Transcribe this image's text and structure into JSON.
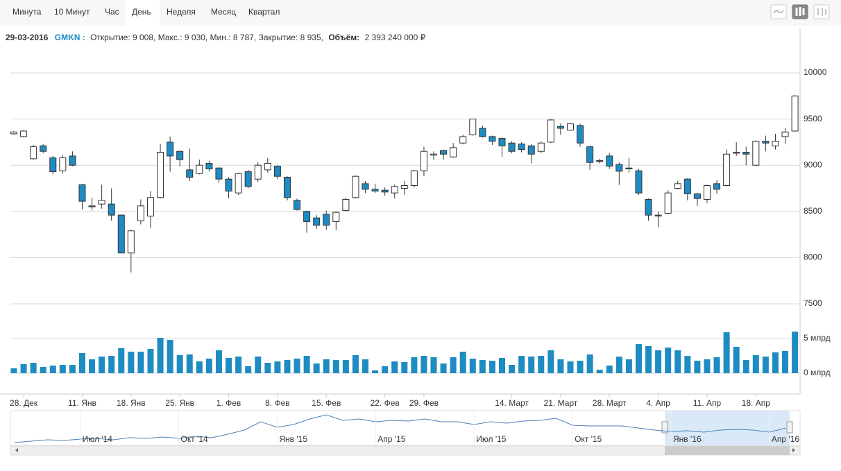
{
  "tabs": [
    "Минута",
    "10 Минут",
    "Час",
    "День",
    "Неделя",
    "Месяц",
    "Квартал"
  ],
  "active_tab": 3,
  "info": {
    "date": "29-03-2016",
    "symbol": "GMKN :",
    "ohlc_text": "Открытие: 9 008, Макс.: 9 030, Мин.: 8 787, Закрытие: 8 935,",
    "volume_label": "Объём:",
    "volume_value": "2 393 240 000 ₽"
  },
  "chart_data": {
    "type": "candlestick",
    "categories": [
      null,
      "28. Дек",
      null,
      null,
      null,
      null,
      null,
      "11. Янв",
      null,
      null,
      null,
      null,
      "18. Янв",
      null,
      null,
      null,
      null,
      "25. Янв",
      null,
      null,
      null,
      null,
      "1. Фев",
      null,
      null,
      null,
      null,
      "8. Фев",
      null,
      null,
      null,
      null,
      "15. Фев",
      null,
      null,
      null,
      null,
      null,
      "22. Фев",
      null,
      null,
      null,
      "29. Фев",
      null,
      null,
      null,
      null,
      null,
      null,
      null,
      null,
      "14. Март",
      null,
      null,
      null,
      null,
      "21. Март",
      null,
      null,
      null,
      null,
      "28. Март",
      null,
      null,
      null,
      null,
      "4. Апр",
      null,
      null,
      null,
      null,
      "11. Апр",
      null,
      null,
      null,
      null,
      "18. Апр",
      null,
      null,
      null,
      null
    ],
    "open": [
      9340,
      9310,
      9070,
      9210,
      9080,
      8940,
      9100,
      8790,
      8560,
      8580,
      8580,
      8460,
      8050,
      8400,
      8450,
      8650,
      9250,
      9150,
      8950,
      8910,
      9020,
      8970,
      8850,
      8700,
      8930,
      8850,
      8950,
      8990,
      8870,
      8620,
      8500,
      8430,
      8470,
      8390,
      8510,
      8650,
      8800,
      8740,
      8730,
      8700,
      8750,
      8780,
      8940,
      9110,
      9160,
      9090,
      9240,
      9330,
      9400,
      9310,
      9290,
      9240,
      9230,
      9210,
      9150,
      9250,
      9420,
      9380,
      9430,
      9200,
      9050,
      9100,
      9008,
      8970,
      8940,
      8630,
      8460,
      8480,
      8750,
      8850,
      8690,
      8630,
      8800,
      8780,
      9130,
      9140,
      9000,
      9260,
      9210,
      9310,
      9370
    ],
    "high": [
      9370,
      9380,
      9220,
      9230,
      9100,
      9110,
      9150,
      8800,
      8650,
      8790,
      8750,
      8470,
      8300,
      8630,
      8720,
      9230,
      9310,
      9160,
      9180,
      9060,
      9050,
      8980,
      8870,
      8920,
      8950,
      9030,
      9080,
      9000,
      8880,
      8640,
      8510,
      8460,
      8510,
      8500,
      8650,
      8890,
      8830,
      8800,
      8760,
      8790,
      8830,
      8950,
      9200,
      9150,
      9170,
      9240,
      9330,
      9500,
      9430,
      9320,
      9300,
      9260,
      9250,
      9230,
      9260,
      9500,
      9450,
      9460,
      9450,
      9210,
      9070,
      9130,
      9030,
      9080,
      8960,
      8640,
      8500,
      8730,
      8830,
      8860,
      8700,
      8790,
      8840,
      9170,
      9250,
      9200,
      9270,
      9320,
      9340,
      9400,
      9760
    ],
    "low": [
      9330,
      9300,
      9060,
      9130,
      8900,
      8910,
      8990,
      8520,
      8510,
      8530,
      8400,
      8050,
      7840,
      8360,
      8320,
      8640,
      8930,
      8990,
      8830,
      8900,
      8930,
      8810,
      8640,
      8680,
      8750,
      8820,
      8920,
      8850,
      8620,
      8510,
      8270,
      8310,
      8300,
      8300,
      8500,
      8640,
      8700,
      8700,
      8670,
      8640,
      8680,
      8760,
      8880,
      9060,
      9060,
      9080,
      9230,
      9320,
      9300,
      9220,
      9090,
      9130,
      9140,
      9020,
      9130,
      9240,
      9330,
      9370,
      9200,
      8950,
      9020,
      8960,
      8787,
      8920,
      8680,
      8400,
      8330,
      8470,
      8740,
      8620,
      8560,
      8590,
      8690,
      8770,
      9100,
      9000,
      8990,
      9150,
      9170,
      9230,
      9360
    ],
    "close": [
      9360,
      9370,
      9200,
      9150,
      8930,
      9080,
      9000,
      8610,
      8550,
      8620,
      8460,
      8050,
      8290,
      8560,
      8650,
      9140,
      9100,
      9060,
      8870,
      9000,
      8960,
      8850,
      8720,
      8910,
      8770,
      9000,
      9020,
      8880,
      8650,
      8520,
      8390,
      8350,
      8350,
      8490,
      8630,
      8880,
      8740,
      8720,
      8710,
      8770,
      8780,
      8940,
      9150,
      9120,
      9120,
      9190,
      9310,
      9500,
      9310,
      9260,
      9210,
      9150,
      9170,
      9120,
      9240,
      9490,
      9400,
      9450,
      9240,
      9030,
      9040,
      8990,
      8935,
      8960,
      8700,
      8460,
      8450,
      8700,
      8800,
      8690,
      8640,
      8780,
      8740,
      9120,
      9140,
      9120,
      9260,
      9240,
      9260,
      9360,
      9750
    ],
    "volume": [
      0.7,
      1.3,
      1.5,
      0.9,
      1.1,
      1.2,
      1.2,
      2.9,
      2.0,
      2.4,
      2.5,
      3.6,
      3.1,
      3.1,
      3.5,
      5.1,
      4.8,
      2.6,
      2.7,
      1.7,
      2.1,
      3.3,
      2.2,
      2.4,
      1.0,
      2.4,
      1.5,
      1.7,
      1.9,
      2.1,
      2.5,
      1.4,
      2.0,
      1.9,
      1.9,
      2.6,
      2.0,
      0.4,
      1.0,
      1.7,
      1.6,
      2.3,
      2.5,
      2.3,
      1.4,
      2.3,
      3.1,
      2.1,
      1.9,
      1.8,
      2.2,
      1.2,
      2.5,
      2.4,
      2.5,
      3.3,
      2.0,
      1.7,
      1.8,
      2.7,
      0.5,
      1.1,
      2.39,
      2.0,
      4.2,
      3.9,
      3.3,
      3.7,
      3.3,
      2.5,
      1.8,
      2.0,
      2.3,
      5.9,
      3.8,
      1.9,
      2.6,
      2.4,
      3.0,
      3.2,
      6.0
    ],
    "up_color": "#ffffff",
    "down_color": "#1e8cc2",
    "volume_color": "#1e8cc2",
    "ylim": [
      7500,
      10000
    ],
    "yticks": [
      7500,
      8000,
      8500,
      9000,
      9500,
      10000
    ],
    "volume_ylim": [
      0,
      6.3
    ],
    "volume_yticks": [
      {
        "value": 0,
        "label": "0 млрд"
      },
      {
        "value": 5,
        "label": "5 млрд"
      }
    ],
    "grid": true,
    "navigator": {
      "categories": [
        null,
        null,
        null,
        null,
        "Июл '14",
        null,
        null,
        null,
        null,
        null,
        "Окт '14",
        null,
        null,
        null,
        null,
        null,
        "Янв '15",
        null,
        null,
        null,
        null,
        null,
        "Апр '15",
        null,
        null,
        null,
        null,
        null,
        "Июл '15",
        null,
        null,
        null,
        null,
        null,
        "Окт '15",
        null,
        null,
        null,
        null,
        null,
        "Янв '16",
        null,
        null,
        null,
        null,
        null,
        "Апр '16",
        null
      ],
      "values": [
        8220,
        8340,
        8460,
        8400,
        8520,
        8580,
        8460,
        8640,
        8580,
        8700,
        8580,
        8760,
        8640,
        8940,
        9300,
        10020,
        9540,
        9780,
        10260,
        10620,
        10140,
        10260,
        10020,
        10140,
        10080,
        10260,
        10020,
        10020,
        9780,
        10020,
        9900,
        10080,
        10140,
        10320,
        9720,
        9660,
        9660,
        9660,
        9480,
        9300,
        9180,
        9240,
        9120,
        9300,
        9360,
        9300,
        9120,
        9480
      ]
    }
  }
}
